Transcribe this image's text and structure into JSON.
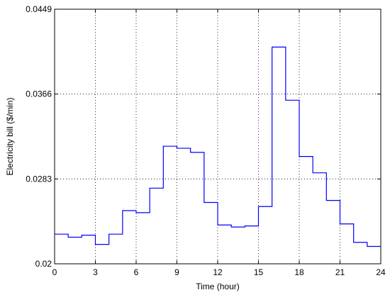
{
  "chart_data": {
    "type": "line",
    "title": "",
    "xlabel": "Time (hour)",
    "ylabel": "Electricity bill ($/min)",
    "xlim": [
      0,
      24
    ],
    "ylim": [
      0.02,
      0.0449
    ],
    "xticks": [
      0,
      3,
      6,
      9,
      12,
      15,
      18,
      21,
      24
    ],
    "xtick_labels": [
      "0",
      "3",
      "6",
      "9",
      "12",
      "15",
      "18",
      "21",
      "24"
    ],
    "yticks": [
      0.02,
      0.0283,
      0.0366,
      0.0449
    ],
    "ytick_labels": [
      "0.02",
      "0.0283",
      "0.0366",
      "0.0449"
    ],
    "grid": true,
    "series": [
      {
        "color": "#0000ff",
        "step": "post",
        "x": [
          0,
          1,
          2,
          3,
          4,
          5,
          6,
          7,
          8,
          9,
          10,
          11,
          12,
          13,
          14,
          15,
          16,
          17,
          18,
          19,
          20,
          21,
          22,
          23,
          24
        ],
        "values": [
          0.0229,
          0.0226,
          0.0228,
          0.0219,
          0.0229,
          0.0252,
          0.025,
          0.0274,
          0.0315,
          0.0313,
          0.0309,
          0.026,
          0.0238,
          0.0236,
          0.0237,
          0.0256,
          0.0412,
          0.036,
          0.0305,
          0.0289,
          0.0262,
          0.0239,
          0.0221,
          0.0217,
          0.0217
        ]
      }
    ]
  }
}
